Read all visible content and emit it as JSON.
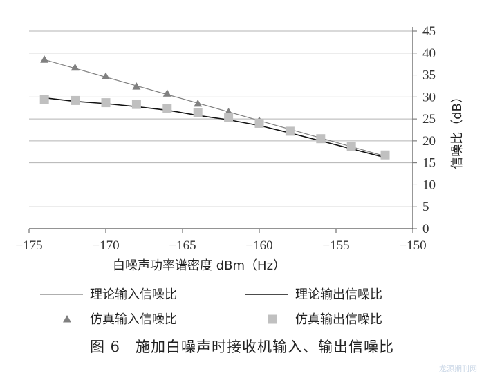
{
  "chart_data": {
    "type": "line",
    "xlabel": "白噪声功率谱密度 dBm（Hz）",
    "ylabel": "信噪比（dB）",
    "xlim": [
      -175,
      -150
    ],
    "ylim": [
      0,
      45
    ],
    "x_ticks": [
      -175,
      -170,
      -165,
      -160,
      -155,
      -150
    ],
    "y_ticks": [
      0,
      5,
      10,
      15,
      20,
      25,
      30,
      35,
      40,
      45
    ],
    "y_axis_side": "right",
    "grid": "horizontal",
    "legend_position": "bottom",
    "series": [
      {
        "name": "理论输入信噪比",
        "kind": "line",
        "color": "#7f7f7f",
        "x": [
          -174,
          -151.8
        ],
        "y": [
          38.5,
          16.5
        ]
      },
      {
        "name": "理论输出信噪比",
        "kind": "line",
        "color": "#111111",
        "x": [
          -174,
          -172,
          -170,
          -168,
          -166,
          -164,
          -162,
          -160,
          -158,
          -156,
          -154,
          -151.8
        ],
        "y": [
          29.8,
          29.0,
          28.5,
          27.8,
          27.0,
          25.8,
          24.8,
          23.5,
          21.8,
          20.0,
          18.2,
          16.2
        ]
      },
      {
        "name": "仿真输入信噪比",
        "kind": "marker",
        "marker": "triangle",
        "color": "#808080",
        "x": [
          -174,
          -172,
          -170,
          -168,
          -166,
          -164,
          -162,
          -160
        ],
        "y": [
          38.5,
          36.7,
          34.7,
          32.4,
          30.8,
          28.5,
          26.6,
          24.6
        ]
      },
      {
        "name": "仿真输出信噪比",
        "kind": "marker",
        "marker": "square",
        "color": "#c0c0c0",
        "x": [
          -174,
          -172,
          -170,
          -168,
          -166,
          -164,
          -162,
          -160,
          -158,
          -156,
          -154,
          -151.8
        ],
        "y": [
          29.4,
          29.2,
          28.7,
          28.3,
          27.3,
          26.4,
          25.3,
          24.0,
          22.2,
          20.5,
          18.8,
          16.8
        ]
      }
    ]
  },
  "caption": "图 6　施加白噪声时接收机输入、输出信噪比",
  "watermark": "龙源期刊网"
}
